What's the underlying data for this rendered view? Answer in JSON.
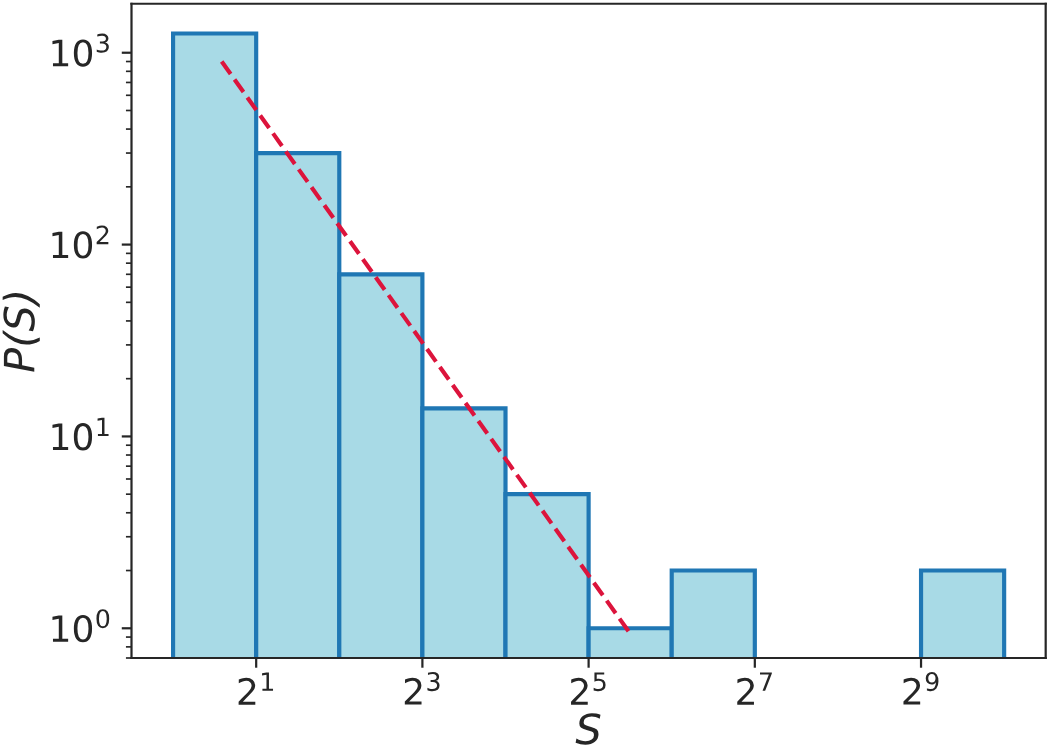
{
  "chart_data": {
    "type": "histogram",
    "xlabel": "S",
    "ylabel": "P(S)",
    "log": "xy",
    "bins": [
      1,
      2,
      4,
      8,
      16,
      32,
      64,
      128,
      256,
      512,
      1024
    ],
    "series": [
      {
        "color": "#a8dae6",
        "values": [
          1260,
          300,
          70,
          14,
          5,
          1,
          2,
          null,
          null,
          2
        ]
      },
      {
        "type": "line",
        "color": "#dc143c",
        "line_style": "dashed",
        "x": [
          1.5,
          45
        ],
        "values": [
          900,
          0.95
        ]
      }
    ],
    "xlim": [
      0.707,
      1448
    ],
    "ylim": [
      0.7,
      1800
    ],
    "xticks": [
      {
        "value": 2,
        "label": "2$^{1}$"
      },
      {
        "value": 8,
        "label": "2$^{3}$"
      },
      {
        "value": 32,
        "label": "2$^{5}$"
      },
      {
        "value": 128,
        "label": "2$^{7}$"
      },
      {
        "value": 512,
        "label": "2$^{9}$"
      }
    ],
    "yticks": [
      {
        "value": 1,
        "label": "10$^{0}$"
      },
      {
        "value": 10,
        "label": "10$^{1}$"
      },
      {
        "value": 100,
        "label": "10$^{2}$"
      },
      {
        "value": 1000,
        "label": "10$^{3}$"
      }
    ],
    "grid": false
  }
}
